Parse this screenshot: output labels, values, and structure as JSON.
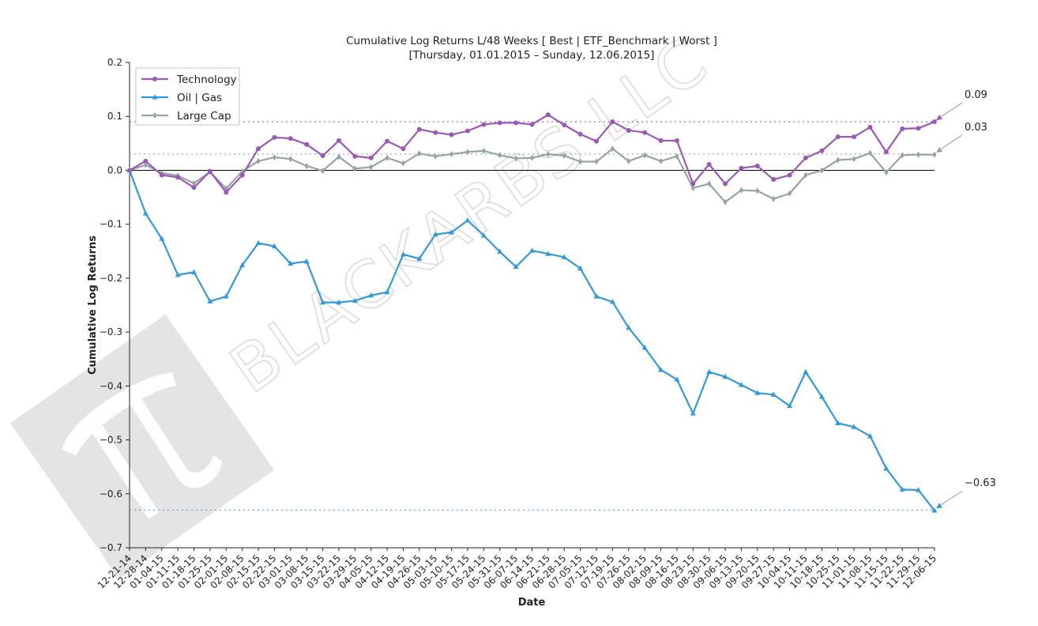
{
  "chart_data": {
    "type": "line",
    "title": "Cumulative Log Returns L/48 Weeks [ Best | ETF_Benchmark | Worst ]",
    "subtitle": "[Thursday, 01.01.2015 – Sunday, 12.06.2015]",
    "xlabel": "Date",
    "ylabel": "Cumulative Log Returns",
    "ylim": [
      -0.7,
      0.2
    ],
    "yticks": [
      0.2,
      0.1,
      0.0,
      -0.1,
      -0.2,
      -0.3,
      -0.4,
      -0.5,
      -0.6,
      -0.7
    ],
    "ytick_labels": [
      "0.2",
      "0.1",
      "0.0",
      "−0.1",
      "−0.2",
      "−0.3",
      "−0.4",
      "−0.5",
      "−0.6",
      "−0.7"
    ],
    "grid": false,
    "legend_position": "top-left",
    "categories": [
      "12-21-14",
      "12-28-14",
      "01-04-15",
      "01-11-15",
      "01-18-15",
      "01-25-15",
      "02-01-15",
      "02-08-15",
      "02-15-15",
      "02-22-15",
      "03-01-15",
      "03-08-15",
      "03-15-15",
      "03-22-15",
      "03-29-15",
      "04-05-15",
      "04-12-15",
      "04-19-15",
      "04-26-15",
      "05-03-15",
      "05-10-15",
      "05-17-15",
      "05-24-15",
      "05-31-15",
      "06-07-15",
      "06-14-15",
      "06-21-15",
      "06-28-15",
      "07-05-15",
      "07-12-15",
      "07-19-15",
      "07-26-15",
      "08-02-15",
      "08-09-15",
      "08-16-15",
      "08-23-15",
      "08-30-15",
      "09-06-15",
      "09-13-15",
      "09-20-15",
      "09-27-15",
      "10-04-15",
      "10-11-15",
      "10-18-15",
      "10-25-15",
      "11-01-15",
      "11-08-15",
      "11-15-15",
      "11-22-15",
      "11-29-15",
      "12-06-15"
    ],
    "series": [
      {
        "name": "Technology",
        "color": "#9b59b6",
        "marker": "circle",
        "values": [
          0.0,
          0.017,
          -0.009,
          -0.013,
          -0.032,
          -0.002,
          -0.041,
          -0.009,
          0.04,
          0.061,
          0.059,
          0.048,
          0.027,
          0.055,
          0.026,
          0.023,
          0.054,
          0.04,
          0.076,
          0.07,
          0.066,
          0.073,
          0.085,
          0.088,
          0.088,
          0.085,
          0.103,
          0.084,
          0.067,
          0.054,
          0.09,
          0.074,
          0.07,
          0.055,
          0.055,
          -0.025,
          0.011,
          -0.025,
          0.004,
          0.008,
          -0.017,
          -0.009,
          0.023,
          0.036,
          0.062,
          0.062,
          0.08,
          0.034,
          0.077,
          0.078,
          0.09
        ]
      },
      {
        "name": "Oil | Gas",
        "color": "#3498db",
        "marker": "triangle",
        "values": [
          0.0,
          -0.08,
          -0.127,
          -0.194,
          -0.189,
          -0.243,
          -0.234,
          -0.176,
          -0.135,
          -0.141,
          -0.173,
          -0.169,
          -0.245,
          -0.245,
          -0.242,
          -0.232,
          -0.226,
          -0.156,
          -0.164,
          -0.119,
          -0.115,
          -0.093,
          -0.121,
          -0.151,
          -0.179,
          -0.149,
          -0.155,
          -0.161,
          -0.182,
          -0.234,
          -0.244,
          -0.292,
          -0.329,
          -0.37,
          -0.388,
          -0.451,
          -0.374,
          -0.383,
          -0.398,
          -0.413,
          -0.416,
          -0.437,
          -0.374,
          -0.42,
          -0.469,
          -0.476,
          -0.493,
          -0.553,
          -0.592,
          -0.593,
          -0.631
        ]
      },
      {
        "name": "Large Cap",
        "color": "#95a5a6",
        "marker": "diamond",
        "values": [
          0.0,
          0.01,
          -0.005,
          -0.01,
          -0.024,
          -0.003,
          -0.034,
          -0.002,
          0.017,
          0.024,
          0.021,
          0.008,
          -0.001,
          0.025,
          0.003,
          0.006,
          0.023,
          0.013,
          0.031,
          0.026,
          0.03,
          0.034,
          0.036,
          0.028,
          0.022,
          0.023,
          0.03,
          0.027,
          0.016,
          0.016,
          0.04,
          0.017,
          0.028,
          0.017,
          0.026,
          -0.033,
          -0.025,
          -0.059,
          -0.037,
          -0.038,
          -0.053,
          -0.043,
          -0.009,
          0.0,
          0.019,
          0.021,
          0.032,
          -0.004,
          0.028,
          0.029,
          0.029
        ]
      }
    ],
    "reference_lines": [
      {
        "series": "Technology",
        "value": 0.09,
        "label": "0.09",
        "style": "dotted"
      },
      {
        "series": "Large Cap",
        "value": 0.03,
        "label": "0.03",
        "style": "dotted"
      },
      {
        "series": "Oil | Gas",
        "value": -0.63,
        "label": "−0.63",
        "style": "dotted"
      }
    ],
    "zero_line": true
  },
  "watermark": {
    "text": "BLACKARBS LLC",
    "logo": "pi-logo"
  }
}
